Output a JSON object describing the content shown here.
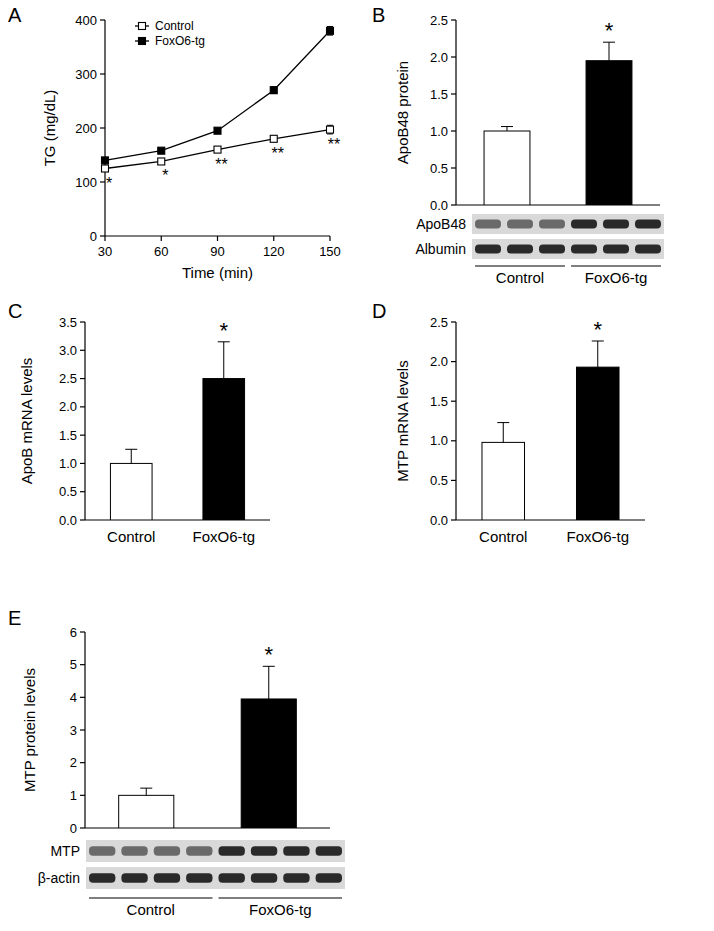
{
  "chart_data": [
    {
      "panel": "A",
      "type": "line",
      "x_label": "Time (min)",
      "y_label": "TG (mg/dL)",
      "x": [
        30,
        60,
        90,
        120,
        150
      ],
      "xlim": [
        30,
        150
      ],
      "xticks": [
        30,
        60,
        90,
        120,
        150
      ],
      "ylim": [
        0,
        400
      ],
      "yticks": [
        0,
        100,
        200,
        300,
        400
      ],
      "legend": "top-left",
      "series": [
        {
          "name": "Control",
          "color": "#000000",
          "marker": "square-open",
          "values": [
            125,
            138,
            160,
            180,
            197
          ],
          "errors": [
            3,
            4,
            4,
            4,
            8
          ]
        },
        {
          "name": "FoxO6-tg",
          "color": "#000000",
          "marker": "square",
          "values": [
            140,
            158,
            195,
            270,
            380
          ],
          "errors": [
            4,
            4,
            4,
            6,
            8
          ]
        }
      ],
      "significance": [
        "*",
        "*",
        "**",
        "**",
        "**"
      ]
    },
    {
      "panel": "B",
      "type": "bar",
      "y_label": "ApoB48 protein",
      "categories": [
        "Control",
        "FoxO6-tg"
      ],
      "values": [
        1.0,
        1.95
      ],
      "errors": [
        0.06,
        0.25
      ],
      "colors": [
        "#ffffff",
        "#000000"
      ],
      "ylim": [
        0,
        2.5
      ],
      "yticks": [
        {
          "value": 0,
          "label": "0.0"
        },
        {
          "value": 0.5,
          "label": "0.5"
        },
        {
          "value": 1,
          "label": "1.0"
        },
        {
          "value": 1.5,
          "label": "1.5"
        },
        {
          "value": 2,
          "label": "2.0"
        },
        {
          "value": 2.5,
          "label": "2.5"
        }
      ],
      "tick_labels": "y",
      "significance": [
        null,
        "*"
      ],
      "blot": {
        "rows": [
          "ApoB48",
          "Albumin"
        ],
        "lanes": [
          3,
          3
        ]
      }
    },
    {
      "panel": "C",
      "type": "bar",
      "y_label": "ApoB mRNA levels",
      "categories": [
        "Control",
        "FoxO6-tg"
      ],
      "values": [
        1.0,
        2.5
      ],
      "errors": [
        0.25,
        0.65
      ],
      "colors": [
        "#ffffff",
        "#000000"
      ],
      "ylim": [
        0,
        3.5
      ],
      "yticks": [
        {
          "value": 0,
          "label": "0.0"
        },
        {
          "value": 0.5,
          "label": "0.5"
        },
        {
          "value": 1,
          "label": "1.0"
        },
        {
          "value": 1.5,
          "label": "1.5"
        },
        {
          "value": 2,
          "label": "2.0"
        },
        {
          "value": 2.5,
          "label": "2.5"
        },
        {
          "value": 3,
          "label": "3.0"
        },
        {
          "value": 3.5,
          "label": "3.5"
        }
      ],
      "significance": [
        null,
        "*"
      ]
    },
    {
      "panel": "D",
      "type": "bar",
      "y_label": "MTP mRNA levels",
      "categories": [
        "Control",
        "FoxO6-tg"
      ],
      "values": [
        0.98,
        1.93
      ],
      "errors": [
        0.25,
        0.33
      ],
      "colors": [
        "#ffffff",
        "#000000"
      ],
      "ylim": [
        0,
        2.5
      ],
      "yticks": [
        {
          "value": 0,
          "label": "0.0"
        },
        {
          "value": 0.5,
          "label": "0.5"
        },
        {
          "value": 1,
          "label": "1.0"
        },
        {
          "value": 1.5,
          "label": "1.5"
        },
        {
          "value": 2,
          "label": "2.0"
        },
        {
          "value": 2.5,
          "label": "2.5"
        }
      ],
      "significance": [
        null,
        "*"
      ]
    },
    {
      "panel": "E",
      "type": "bar",
      "y_label": "MTP protein levels",
      "categories": [
        "Control",
        "FoxO6-tg"
      ],
      "values": [
        1.0,
        3.95
      ],
      "errors": [
        0.22,
        1.0
      ],
      "colors": [
        "#ffffff",
        "#000000"
      ],
      "ylim": [
        0,
        6
      ],
      "yticks": [
        0,
        1,
        2,
        3,
        4,
        5,
        6
      ],
      "tick_labels": "y",
      "significance": [
        null,
        "*"
      ],
      "blot": {
        "rows": [
          "MTP",
          "β-actin"
        ],
        "lanes": [
          4,
          4
        ]
      }
    }
  ]
}
